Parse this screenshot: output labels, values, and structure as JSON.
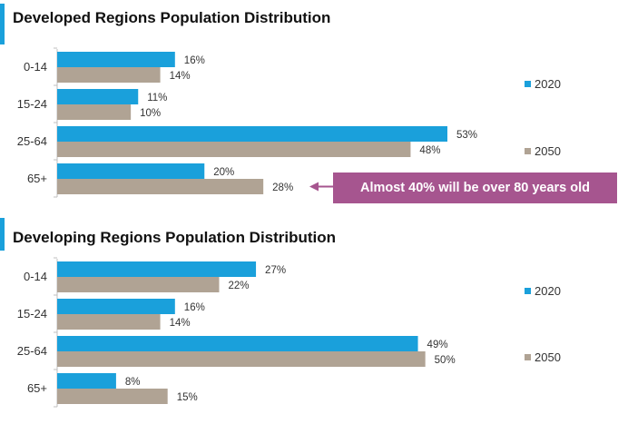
{
  "colors": {
    "series_2020": "#1aa0db",
    "series_2050": "#b0a394",
    "callout": "#a6558f",
    "accent": "#1aa0db"
  },
  "chart_data": [
    {
      "type": "bar",
      "orientation": "horizontal",
      "title": "Developed Regions Population Distribution",
      "categories": [
        "0-14",
        "15-24",
        "25-64",
        "65+"
      ],
      "series": [
        {
          "name": "2020",
          "values": [
            16,
            11,
            53,
            20
          ],
          "labels": [
            "16%",
            "11%",
            "53%",
            "20%"
          ]
        },
        {
          "name": "2050",
          "values": [
            14,
            10,
            48,
            28
          ],
          "labels": [
            "14%",
            "10%",
            "48%",
            "28%"
          ]
        }
      ],
      "xlim": [
        0,
        53
      ],
      "legend": "right",
      "grid": false,
      "annotation": {
        "text": "Almost 40% will be over 80 years old",
        "target_category": "65+",
        "target_series": "2050"
      }
    },
    {
      "type": "bar",
      "orientation": "horizontal",
      "title": "Developing Regions Population Distribution",
      "categories": [
        "0-14",
        "15-24",
        "25-64",
        "65+"
      ],
      "series": [
        {
          "name": "2020",
          "values": [
            27,
            16,
            49,
            8
          ],
          "labels": [
            "27%",
            "16%",
            "49%",
            "8%"
          ]
        },
        {
          "name": "2050",
          "values": [
            22,
            14,
            50,
            15
          ],
          "labels": [
            "22%",
            "14%",
            "50%",
            "15%"
          ]
        }
      ],
      "xlim": [
        0,
        53
      ],
      "legend": "right",
      "grid": false
    }
  ]
}
